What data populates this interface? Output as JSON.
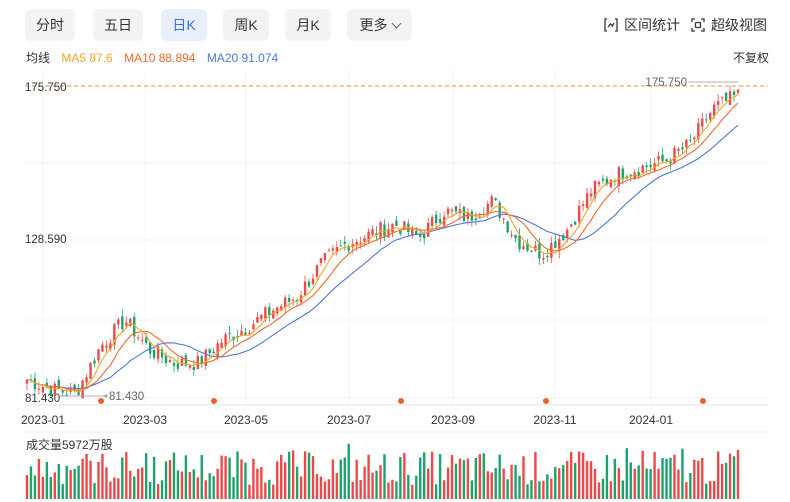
{
  "tabs": [
    {
      "label": "分时",
      "active": false
    },
    {
      "label": "五日",
      "active": false
    },
    {
      "label": "日K",
      "active": true
    },
    {
      "label": "周K",
      "active": false
    },
    {
      "label": "月K",
      "active": false
    },
    {
      "label": "更多",
      "active": false
    }
  ],
  "tools": {
    "range_stats": "区间统计",
    "super_view": "超级视图"
  },
  "ma_legend": {
    "title": "均线",
    "ma5": "MA5 87.6",
    "ma10": "MA10 88.894",
    "ma20": "MA20 91.074",
    "fuquan": "不复权"
  },
  "colors": {
    "up": "#f04848",
    "down": "#1aa36b",
    "ma5": "#f5a623",
    "ma10": "#f06a2c",
    "ma20": "#4f77e0",
    "accent": "#3a6ee8"
  },
  "chart_data": {
    "type": "candlestick",
    "y_tick_labels": [
      "175.750",
      "128.590",
      "81.430"
    ],
    "ylim": [
      81.43,
      175.75
    ],
    "x_tick_labels": [
      "2023-01",
      "2023-03",
      "2023-05",
      "2023-07",
      "2023-09",
      "2023-11",
      "2024-01"
    ],
    "max_label": "175.750",
    "min_label": "81.430",
    "volume_label": "成交量5972万股",
    "price_path": [
      {
        "month": "2023-01",
        "price": 87
      },
      {
        "month": "2023-01",
        "price": 84
      },
      {
        "month": "2023-02",
        "price": 83
      },
      {
        "month": "2023-02",
        "price": 97
      },
      {
        "month": "2023-02",
        "price": 105
      },
      {
        "month": "2023-03",
        "price": 96
      },
      {
        "month": "2023-03",
        "price": 92
      },
      {
        "month": "2023-03",
        "price": 92
      },
      {
        "month": "2023-04",
        "price": 99
      },
      {
        "month": "2023-04",
        "price": 103
      },
      {
        "month": "2023-05",
        "price": 108
      },
      {
        "month": "2023-05",
        "price": 112
      },
      {
        "month": "2023-06",
        "price": 122
      },
      {
        "month": "2023-06",
        "price": 128
      },
      {
        "month": "2023-07",
        "price": 131
      },
      {
        "month": "2023-07",
        "price": 134
      },
      {
        "month": "2023-08",
        "price": 130
      },
      {
        "month": "2023-08",
        "price": 138
      },
      {
        "month": "2023-09",
        "price": 136
      },
      {
        "month": "2023-09",
        "price": 141
      },
      {
        "month": "2023-10",
        "price": 129
      },
      {
        "month": "2023-10",
        "price": 125
      },
      {
        "month": "2023-11",
        "price": 132
      },
      {
        "month": "2023-11",
        "price": 144
      },
      {
        "month": "2023-12",
        "price": 149
      },
      {
        "month": "2023-12",
        "price": 151
      },
      {
        "month": "2024-01",
        "price": 153
      },
      {
        "month": "2024-01",
        "price": 158
      },
      {
        "month": "2024-02",
        "price": 169
      },
      {
        "month": "2024-02",
        "price": 173
      }
    ]
  }
}
